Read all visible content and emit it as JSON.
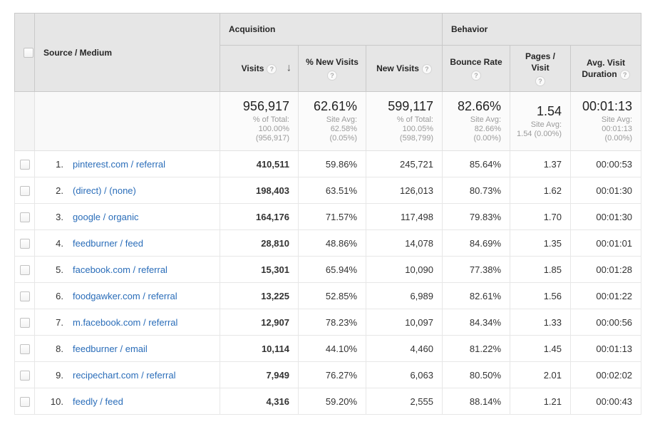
{
  "table": {
    "columns": {
      "source_medium": "Source / Medium",
      "group_acquisition": "Acquisition",
      "group_behavior": "Behavior",
      "visits": "Visits",
      "pct_new_visits": "% New Visits",
      "new_visits": "New Visits",
      "bounce_rate": "Bounce Rate",
      "pages_per_visit": "Pages / Visit",
      "avg_visit_duration": "Avg. Visit Duration",
      "help_icon_glyph": "?",
      "sort_desc_glyph": "↓"
    },
    "summary": {
      "visits": {
        "value": "956,917",
        "sub": "% of Total:\n100.00%\n(956,917)"
      },
      "pct_new_visits": {
        "value": "62.61%",
        "sub": "Site Avg:\n62.58%\n(0.05%)"
      },
      "new_visits": {
        "value": "599,117",
        "sub": "% of Total:\n100.05%\n(598,799)"
      },
      "bounce_rate": {
        "value": "82.66%",
        "sub": "Site Avg:\n82.66%\n(0.00%)"
      },
      "pages_per_visit": {
        "value": "1.54",
        "sub": "Site Avg:\n1.54 (0.00%)"
      },
      "avg_visit_duration": {
        "value": "00:01:13",
        "sub": "Site Avg:\n00:01:13\n(0.00%)"
      }
    },
    "rows": [
      {
        "rank": "1.",
        "source": "pinterest.com / referral",
        "visits": "410,511",
        "pct_new_visits": "59.86%",
        "new_visits": "245,721",
        "bounce_rate": "85.64%",
        "pages_per_visit": "1.37",
        "avg_visit_duration": "00:00:53"
      },
      {
        "rank": "2.",
        "source": "(direct) / (none)",
        "visits": "198,403",
        "pct_new_visits": "63.51%",
        "new_visits": "126,013",
        "bounce_rate": "80.73%",
        "pages_per_visit": "1.62",
        "avg_visit_duration": "00:01:30"
      },
      {
        "rank": "3.",
        "source": "google / organic",
        "visits": "164,176",
        "pct_new_visits": "71.57%",
        "new_visits": "117,498",
        "bounce_rate": "79.83%",
        "pages_per_visit": "1.70",
        "avg_visit_duration": "00:01:30"
      },
      {
        "rank": "4.",
        "source": "feedburner / feed",
        "visits": "28,810",
        "pct_new_visits": "48.86%",
        "new_visits": "14,078",
        "bounce_rate": "84.69%",
        "pages_per_visit": "1.35",
        "avg_visit_duration": "00:01:01"
      },
      {
        "rank": "5.",
        "source": "facebook.com / referral",
        "visits": "15,301",
        "pct_new_visits": "65.94%",
        "new_visits": "10,090",
        "bounce_rate": "77.38%",
        "pages_per_visit": "1.85",
        "avg_visit_duration": "00:01:28"
      },
      {
        "rank": "6.",
        "source": "foodgawker.com / referral",
        "visits": "13,225",
        "pct_new_visits": "52.85%",
        "new_visits": "6,989",
        "bounce_rate": "82.61%",
        "pages_per_visit": "1.56",
        "avg_visit_duration": "00:01:22"
      },
      {
        "rank": "7.",
        "source": "m.facebook.com / referral",
        "visits": "12,907",
        "pct_new_visits": "78.23%",
        "new_visits": "10,097",
        "bounce_rate": "84.34%",
        "pages_per_visit": "1.33",
        "avg_visit_duration": "00:00:56"
      },
      {
        "rank": "8.",
        "source": "feedburner / email",
        "visits": "10,114",
        "pct_new_visits": "44.10%",
        "new_visits": "4,460",
        "bounce_rate": "81.22%",
        "pages_per_visit": "1.45",
        "avg_visit_duration": "00:01:13"
      },
      {
        "rank": "9.",
        "source": "recipechart.com / referral",
        "visits": "7,949",
        "pct_new_visits": "76.27%",
        "new_visits": "6,063",
        "bounce_rate": "80.50%",
        "pages_per_visit": "2.01",
        "avg_visit_duration": "00:02:02"
      },
      {
        "rank": "10.",
        "source": "feedly / feed",
        "visits": "4,316",
        "pct_new_visits": "59.20%",
        "new_visits": "2,555",
        "bounce_rate": "88.14%",
        "pages_per_visit": "1.21",
        "avg_visit_duration": "00:00:43"
      }
    ],
    "colors": {
      "link_blue": "#2a6db9",
      "header_bg": "#e6e6e6",
      "checkbox_col_bg": "#f5f5f5"
    }
  }
}
